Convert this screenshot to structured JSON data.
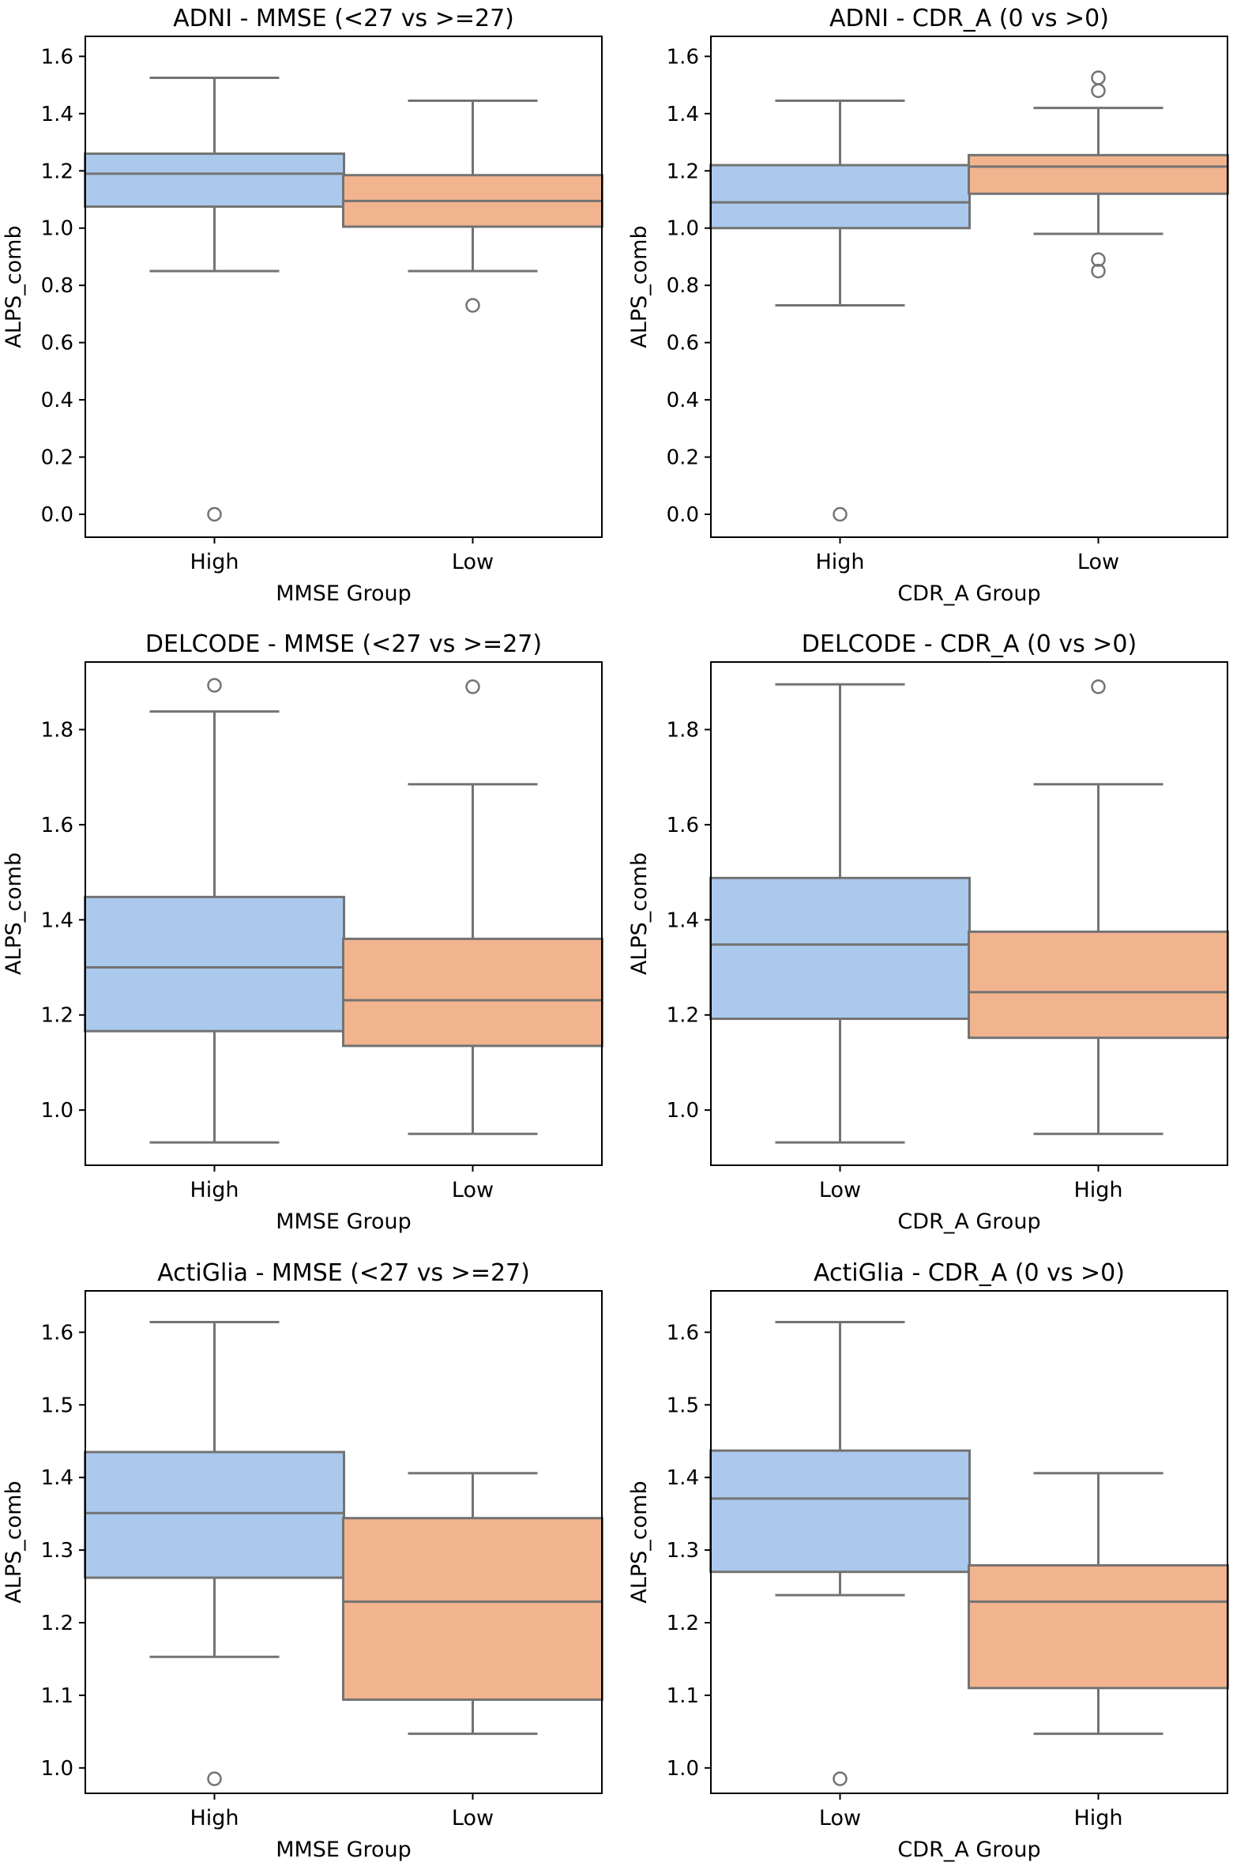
{
  "colors": {
    "first_box": "#abc9ed",
    "second_box": "#f1b48f",
    "line": "#737373",
    "axes": "#000000"
  },
  "chart_data": [
    {
      "type": "box",
      "title": "ADNI - MMSE (<27 vs >=27)",
      "xlabel": "MMSE Group",
      "ylabel": "ALPS_comb",
      "ylim": [
        -0.08,
        1.67
      ],
      "yticks": [
        0.0,
        0.2,
        0.4,
        0.6,
        0.8,
        1.0,
        1.2,
        1.4,
        1.6
      ],
      "ytick_labels": [
        "0.0",
        "0.2",
        "0.4",
        "0.6",
        "0.8",
        "1.0",
        "1.2",
        "1.4",
        "1.6"
      ],
      "categories": [
        "High",
        "Low"
      ],
      "boxes": [
        {
          "whisker_low": 0.85,
          "q1": 1.075,
          "median": 1.19,
          "q3": 1.26,
          "whisker_high": 1.525,
          "outliers": [
            0.0
          ]
        },
        {
          "whisker_low": 0.85,
          "q1": 1.005,
          "median": 1.095,
          "q3": 1.185,
          "whisker_high": 1.445,
          "outliers": [
            0.73
          ]
        }
      ]
    },
    {
      "type": "box",
      "title": "ADNI - CDR_A (0 vs >0)",
      "xlabel": "CDR_A Group",
      "ylabel": "ALPS_comb",
      "ylim": [
        -0.08,
        1.67
      ],
      "yticks": [
        0.0,
        0.2,
        0.4,
        0.6,
        0.8,
        1.0,
        1.2,
        1.4,
        1.6
      ],
      "ytick_labels": [
        "0.0",
        "0.2",
        "0.4",
        "0.6",
        "0.8",
        "1.0",
        "1.2",
        "1.4",
        "1.6"
      ],
      "categories": [
        "High",
        "Low"
      ],
      "boxes": [
        {
          "whisker_low": 0.73,
          "q1": 1.0,
          "median": 1.09,
          "q3": 1.22,
          "whisker_high": 1.445,
          "outliers": [
            0.0
          ]
        },
        {
          "whisker_low": 0.98,
          "q1": 1.12,
          "median": 1.215,
          "q3": 1.255,
          "whisker_high": 1.42,
          "outliers": [
            0.85,
            0.89,
            1.48,
            1.525
          ]
        }
      ]
    },
    {
      "type": "box",
      "title": "DELCODE - MMSE (<27 vs >=27)",
      "xlabel": "MMSE Group",
      "ylabel": "ALPS_comb",
      "ylim": [
        0.884,
        1.942
      ],
      "yticks": [
        1.0,
        1.2,
        1.4,
        1.6,
        1.8
      ],
      "ytick_labels": [
        "1.0",
        "1.2",
        "1.4",
        "1.6",
        "1.8"
      ],
      "categories": [
        "High",
        "Low"
      ],
      "boxes": [
        {
          "whisker_low": 0.932,
          "q1": 1.166,
          "median": 1.3,
          "q3": 1.448,
          "whisker_high": 1.838,
          "outliers": [
            1.893
          ]
        },
        {
          "whisker_low": 0.95,
          "q1": 1.135,
          "median": 1.231,
          "q3": 1.36,
          "whisker_high": 1.685,
          "outliers": [
            1.89
          ]
        }
      ]
    },
    {
      "type": "box",
      "title": "DELCODE - CDR_A (0 vs >0)",
      "xlabel": "CDR_A Group",
      "ylabel": "ALPS_comb",
      "ylim": [
        0.884,
        1.942
      ],
      "yticks": [
        1.0,
        1.2,
        1.4,
        1.6,
        1.8
      ],
      "ytick_labels": [
        "1.0",
        "1.2",
        "1.4",
        "1.6",
        "1.8"
      ],
      "categories": [
        "Low",
        "High"
      ],
      "boxes": [
        {
          "whisker_low": 0.932,
          "q1": 1.192,
          "median": 1.348,
          "q3": 1.488,
          "whisker_high": 1.895,
          "outliers": []
        },
        {
          "whisker_low": 0.95,
          "q1": 1.152,
          "median": 1.248,
          "q3": 1.375,
          "whisker_high": 1.685,
          "outliers": [
            1.89
          ]
        }
      ]
    },
    {
      "type": "box",
      "title": "ActiGlia - MMSE (<27 vs >=27)",
      "xlabel": "MMSE Group",
      "ylabel": "ALPS_comb",
      "ylim": [
        0.965,
        1.657
      ],
      "yticks": [
        1.0,
        1.1,
        1.2,
        1.3,
        1.4,
        1.5,
        1.6
      ],
      "ytick_labels": [
        "1.0",
        "1.1",
        "1.2",
        "1.3",
        "1.4",
        "1.5",
        "1.6"
      ],
      "categories": [
        "High",
        "Low"
      ],
      "boxes": [
        {
          "whisker_low": 1.153,
          "q1": 1.262,
          "median": 1.351,
          "q3": 1.435,
          "whisker_high": 1.614,
          "outliers": [
            0.985
          ]
        },
        {
          "whisker_low": 1.047,
          "q1": 1.094,
          "median": 1.229,
          "q3": 1.344,
          "whisker_high": 1.406,
          "outliers": []
        }
      ]
    },
    {
      "type": "box",
      "title": "ActiGlia - CDR_A (0 vs >0)",
      "xlabel": "CDR_A Group",
      "ylabel": "ALPS_comb",
      "ylim": [
        0.965,
        1.657
      ],
      "yticks": [
        1.0,
        1.1,
        1.2,
        1.3,
        1.4,
        1.5,
        1.6
      ],
      "ytick_labels": [
        "1.0",
        "1.1",
        "1.2",
        "1.3",
        "1.4",
        "1.5",
        "1.6"
      ],
      "categories": [
        "Low",
        "High"
      ],
      "boxes": [
        {
          "whisker_low": 1.238,
          "q1": 1.27,
          "median": 1.371,
          "q3": 1.437,
          "whisker_high": 1.614,
          "outliers": [
            0.985
          ]
        },
        {
          "whisker_low": 1.047,
          "q1": 1.11,
          "median": 1.229,
          "q3": 1.279,
          "whisker_high": 1.406,
          "outliers": []
        }
      ]
    }
  ]
}
